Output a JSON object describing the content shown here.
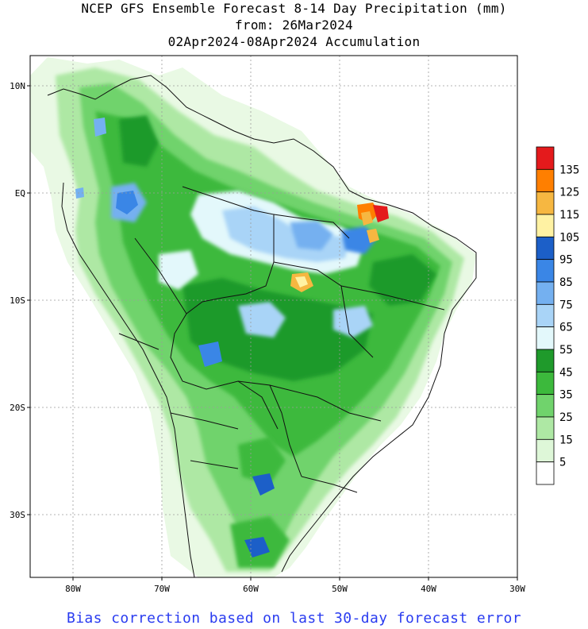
{
  "title": {
    "line1": "NCEP GFS Ensemble Forecast 8-14 Day Precipitation (mm)",
    "line2": "from: 26Mar2024",
    "line3": "02Apr2024-08Apr2024 Accumulation"
  },
  "axes": {
    "lat_labels": [
      "10N",
      "EQ",
      "10S",
      "20S",
      "30S"
    ],
    "lon_labels": [
      "80W",
      "70W",
      "60W",
      "50W",
      "40W",
      "30W"
    ]
  },
  "legend": {
    "labels": [
      "135",
      "125",
      "115",
      "105",
      "95",
      "85",
      "75",
      "65",
      "55",
      "45",
      "35",
      "25",
      "15",
      "5"
    ],
    "colors": [
      "#e41a1c",
      "#ff7f00",
      "#f6b741",
      "#fff2a3",
      "#1c5fc8",
      "#3a86e6",
      "#74b0f0",
      "#a9d4f7",
      "#e3f8fb",
      "#1f9a2b",
      "#3cb93c",
      "#70d36c",
      "#aee8a4",
      "#def7d8",
      "#ffffff"
    ]
  },
  "footer": "Bias correction based on last 30-day forecast error"
}
